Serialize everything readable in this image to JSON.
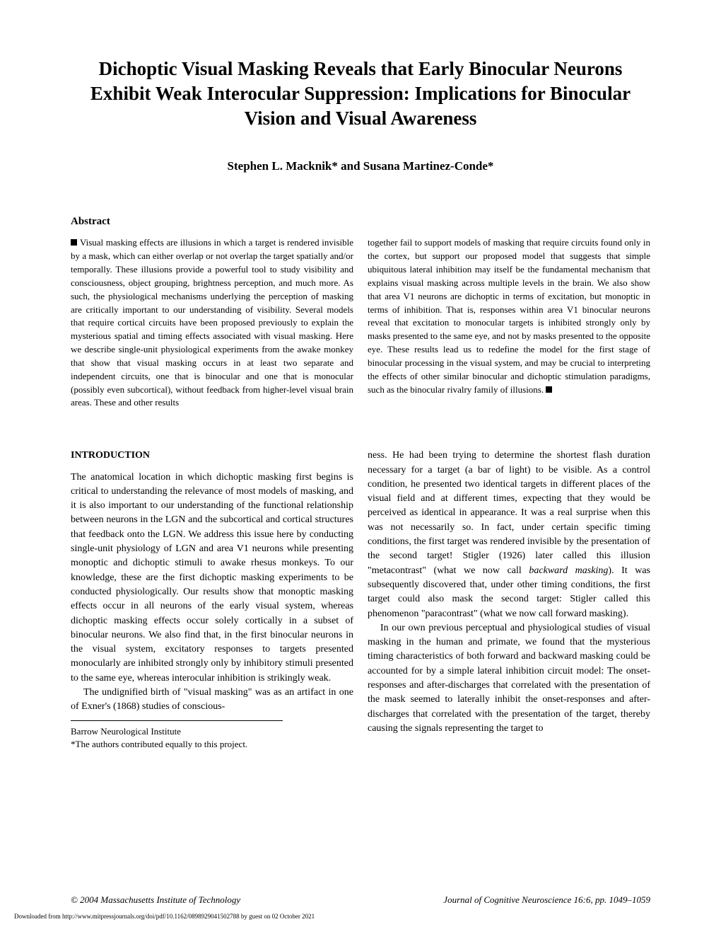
{
  "title": "Dichoptic Visual Masking Reveals that Early Binocular Neurons Exhibit Weak Interocular Suppression: Implications for Binocular Vision and Visual Awareness",
  "authors": "Stephen L. Macknik* and Susana Martinez-Conde*",
  "abstract": {
    "heading": "Abstract",
    "col1": "Visual masking effects are illusions in which a target is rendered invisible by a mask, which can either overlap or not overlap the target spatially and/or temporally. These illusions provide a powerful tool to study visibility and consciousness, object grouping, brightness perception, and much more. As such, the physiological mechanisms underlying the perception of masking are critically important to our understanding of visibility. Several models that require cortical circuits have been proposed previously to explain the mysterious spatial and timing effects associated with visual masking. Here we describe single-unit physiological experiments from the awake monkey that show that visual masking occurs in at least two separate and independent circuits, one that is binocular and one that is monocular (possibly even subcortical), without feedback from higher-level visual brain areas. These and other results",
    "col2": "together fail to support models of masking that require circuits found only in the cortex, but support our proposed model that suggests that simple ubiquitous lateral inhibition may itself be the fundamental mechanism that explains visual masking across multiple levels in the brain. We also show that area V1 neurons are dichoptic in terms of excitation, but monoptic in terms of inhibition. That is, responses within area V1 binocular neurons reveal that excitation to monocular targets is inhibited strongly only by masks presented to the same eye, and not by masks presented to the opposite eye. These results lead us to redefine the model for the first stage of binocular processing in the visual system, and may be crucial to interpreting the effects of other similar binocular and dichoptic stimulation paradigms, such as the binocular rivalry family of illusions."
  },
  "introduction": {
    "heading": "INTRODUCTION",
    "col1_p1": "The anatomical location in which dichoptic masking first begins is critical to understanding the relevance of most models of masking, and it is also important to our understanding of the functional relationship between neurons in the LGN and the subcortical and cortical structures that feedback onto the LGN. We address this issue here by conducting single-unit physiology of LGN and area V1 neurons while presenting monoptic and dichoptic stimuli to awake rhesus monkeys. To our knowledge, these are the first dichoptic masking experiments to be conducted physiologically. Our results show that monoptic masking effects occur in all neurons of the early visual system, whereas dichoptic masking effects occur solely cortically in a subset of binocular neurons. We also find that, in the first binocular neurons in the visual system, excitatory responses to targets presented monocularly are inhibited strongly only by inhibitory stimuli presented to the same eye, whereas interocular inhibition is strikingly weak.",
    "col1_p2": "The undignified birth of \"visual masking\" was as an artifact in one of Exner's (1868) studies of conscious-",
    "col2_p1_start": "ness. He had been trying to determine the shortest flash duration necessary for a target (a bar of light) to be visible. As a control condition, he presented two identical targets in different places of the visual field and at different times, expecting that they would be perceived as identical in appearance. It was a real surprise when this was not necessarily so. In fact, under certain specific timing conditions, the first target was rendered invisible by the presentation of the second target! Stigler (1926) later called this illusion \"metacontrast\" (what we now call ",
    "col2_p1_italic": "backward masking",
    "col2_p1_end": "). It was subsequently discovered that, under other timing conditions, the first target could also mask the second target: Stigler called this phenomenon \"paracontrast\" (what we now call forward masking).",
    "col2_p2": "In our own previous perceptual and physiological studies of visual masking in the human and primate, we found that the mysterious timing characteristics of both forward and backward masking could be accounted for by a simple lateral inhibition circuit model: The onset-responses and after-discharges that correlated with the presentation of the mask seemed to laterally inhibit the onset-responses and after-discharges that correlated with the presentation of the target, thereby causing the signals representing the target to"
  },
  "affiliation": {
    "institute": "Barrow Neurological Institute",
    "note": "*The authors contributed equally to this project."
  },
  "footer": {
    "copyright": "© 2004 Massachusetts Institute of Technology",
    "journal": "Journal of Cognitive Neuroscience 16:6, pp. 1049–1059"
  },
  "download_note": "Downloaded from http://www.mitpressjournals.org/doi/pdf/10.1162/0898929041502788 by guest on 02 October 2021"
}
